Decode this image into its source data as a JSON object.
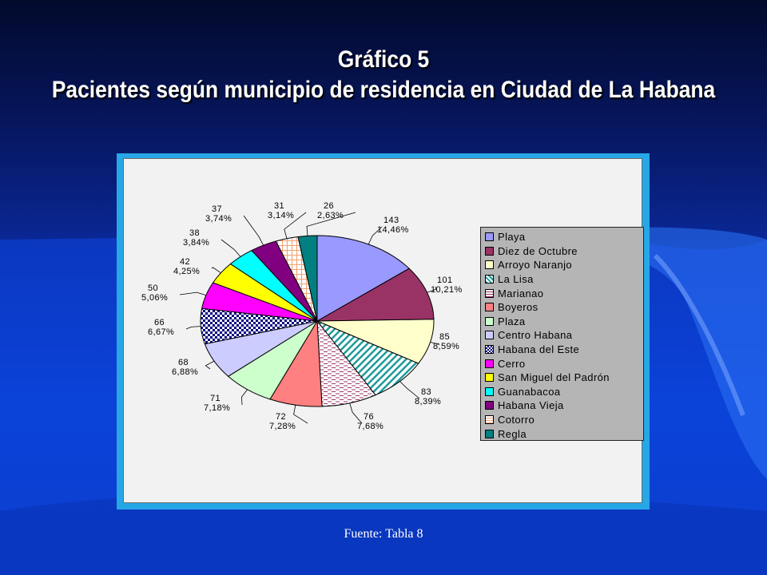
{
  "slide": {
    "title_line1": "Gráfico 5",
    "title_line2": "Pacientes según municipio de residencia en Ciudad de La Habana",
    "source": "Fuente: Tabla 8"
  },
  "chart_data": {
    "type": "pie",
    "categories": [
      "Playa",
      "Diez de Octubre",
      "Arroyo Naranjo",
      "La Lisa",
      "Marianao",
      "Boyeros",
      "Plaza",
      "Centro Habana",
      "Habana del Este",
      "Cerro",
      "San Miguel del Padrón",
      "Guanabacoa",
      "Habana Vieja",
      "Cotorro",
      "Regla"
    ],
    "values": [
      143,
      101,
      85,
      83,
      76,
      72,
      71,
      68,
      66,
      50,
      42,
      38,
      37,
      31,
      26
    ],
    "percent_labels": [
      "14,46%",
      "10,21%",
      "8,59%",
      "8,39%",
      "7,68%",
      "7,28%",
      "7,18%",
      "6,88%",
      "6,67%",
      "5,06%",
      "4,25%",
      "3,84%",
      "3,74%",
      "3,14%",
      "2,63%"
    ],
    "colors": [
      "#9999ff",
      "#993366",
      "#ffffcc",
      "#ccffff",
      "#ffffff",
      "#ff8080",
      "#ccffcc",
      "#ccccff",
      "#ffffff",
      "#ff00ff",
      "#ffff00",
      "#00ffff",
      "#800080",
      "#ffffff",
      "#008080"
    ],
    "patterns": [
      "solid",
      "solid",
      "solid",
      "diagonal-teal",
      "dashed-pink",
      "solid",
      "solid",
      "solid",
      "checker-navy",
      "solid",
      "solid",
      "solid",
      "solid",
      "grid-peach",
      "solid"
    ],
    "legend_position": "right"
  }
}
